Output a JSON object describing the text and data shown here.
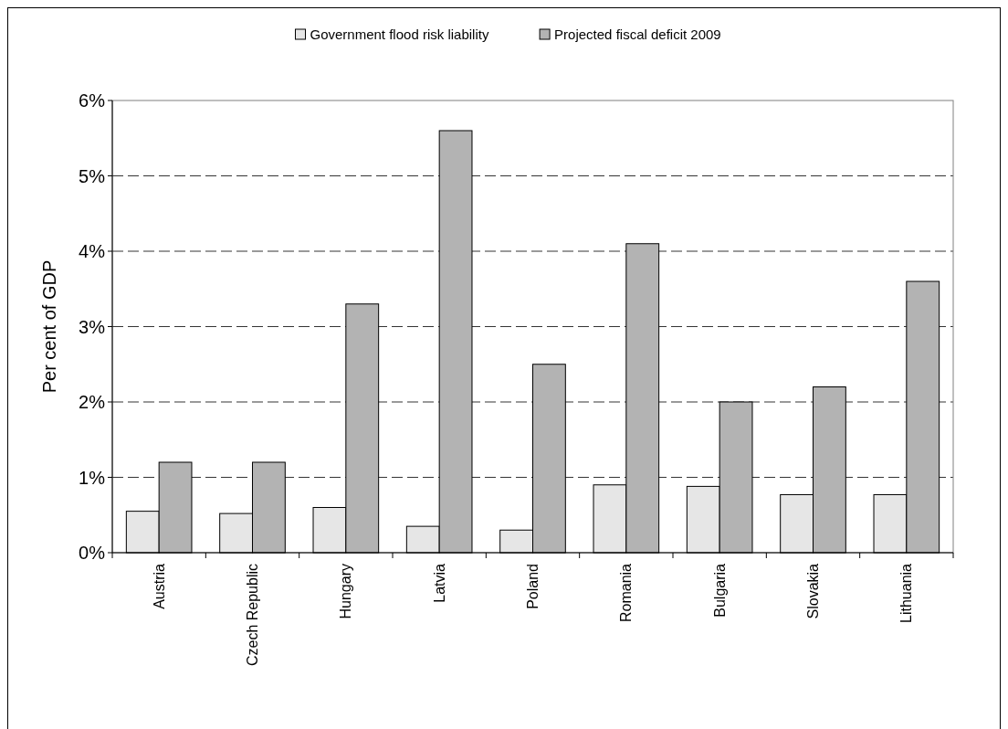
{
  "chart_data": {
    "type": "bar",
    "ylabel": "Per cent of GDP",
    "categories": [
      "Austria",
      "Czech Republic",
      "Hungary",
      "Latvia",
      "Poland",
      "Romania",
      "Bulgaria",
      "Slovakia",
      "Lithuania"
    ],
    "series": [
      {
        "name": "Government flood risk liability",
        "color": "#e6e6e6",
        "values": [
          0.55,
          0.52,
          0.6,
          0.35,
          0.3,
          0.9,
          0.88,
          0.77,
          0.77
        ]
      },
      {
        "name": "Projected fiscal deficit 2009",
        "color": "#b3b3b3",
        "values": [
          1.2,
          1.2,
          3.3,
          5.6,
          2.5,
          4.1,
          2.0,
          2.2,
          3.6
        ]
      }
    ],
    "ylim": [
      0,
      6
    ],
    "yticks": [
      {
        "value": 0,
        "label": "0%"
      },
      {
        "value": 1,
        "label": "1%"
      },
      {
        "value": 2,
        "label": "2%"
      },
      {
        "value": 3,
        "label": "3%"
      },
      {
        "value": 4,
        "label": "4%"
      },
      {
        "value": 5,
        "label": "5%"
      },
      {
        "value": 6,
        "label": "6%"
      }
    ],
    "grid": "y",
    "legend": "top"
  }
}
